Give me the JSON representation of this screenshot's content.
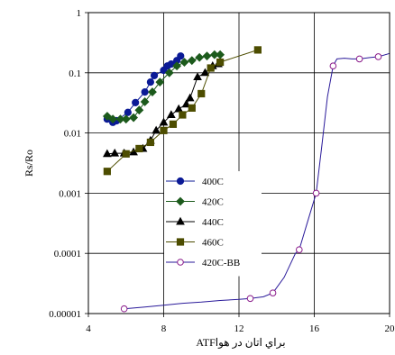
{
  "chart_data": {
    "type": "scatter",
    "title": "",
    "xlabel": "ATFبراي اتان در هوا",
    "ylabel": "Rs/Ro",
    "xlim": [
      4,
      20
    ],
    "ylim": [
      1e-05,
      1
    ],
    "yscale": "log",
    "grid": true,
    "legend_position": "center",
    "x_ticks": [
      "4",
      "8",
      "12",
      "16",
      "20"
    ],
    "y_ticks": [
      "0.00001",
      "0.0001",
      "0.001",
      "0.01",
      "0.1",
      "1"
    ],
    "series": [
      {
        "name": "400C",
        "color": "#0b1a96",
        "marker": "circle-filled",
        "points": [
          [
            5.0,
            0.017
          ],
          [
            5.3,
            0.015
          ],
          [
            5.5,
            0.016
          ],
          [
            6.1,
            0.022
          ],
          [
            6.5,
            0.032
          ],
          [
            7.0,
            0.048
          ],
          [
            7.3,
            0.07
          ],
          [
            7.5,
            0.09
          ],
          [
            8.0,
            0.11
          ],
          [
            8.2,
            0.13
          ],
          [
            8.4,
            0.14
          ],
          [
            8.7,
            0.16
          ],
          [
            8.9,
            0.19
          ]
        ]
      },
      {
        "name": "420C",
        "color": "#1c5a1c",
        "marker": "diamond-filled",
        "points": [
          [
            5.0,
            0.019
          ],
          [
            5.3,
            0.017
          ],
          [
            5.7,
            0.017
          ],
          [
            6.0,
            0.017
          ],
          [
            6.4,
            0.018
          ],
          [
            6.7,
            0.024
          ],
          [
            7.0,
            0.033
          ],
          [
            7.4,
            0.048
          ],
          [
            7.8,
            0.07
          ],
          [
            8.3,
            0.1
          ],
          [
            8.7,
            0.13
          ],
          [
            9.1,
            0.15
          ],
          [
            9.5,
            0.16
          ],
          [
            9.9,
            0.18
          ],
          [
            10.3,
            0.19
          ],
          [
            10.7,
            0.2
          ],
          [
            11.0,
            0.2
          ]
        ]
      },
      {
        "name": "440C",
        "color": "#000000",
        "marker": "triangle-filled",
        "points": [
          [
            5.0,
            0.0045
          ],
          [
            5.4,
            0.0046
          ],
          [
            5.9,
            0.0046
          ],
          [
            6.4,
            0.0048
          ],
          [
            6.9,
            0.0055
          ],
          [
            7.3,
            0.0075
          ],
          [
            7.6,
            0.011
          ],
          [
            8.0,
            0.015
          ],
          [
            8.4,
            0.02
          ],
          [
            8.8,
            0.025
          ],
          [
            9.2,
            0.03
          ],
          [
            9.4,
            0.038
          ],
          [
            9.8,
            0.085
          ],
          [
            10.2,
            0.1
          ],
          [
            10.6,
            0.13
          ],
          [
            10.9,
            0.14
          ]
        ]
      },
      {
        "name": "460C",
        "color": "#4d4d00",
        "marker": "square-filled",
        "points": [
          [
            5.0,
            0.0023
          ],
          [
            6.0,
            0.0045
          ],
          [
            6.7,
            0.0055
          ],
          [
            7.3,
            0.007
          ],
          [
            8.0,
            0.011
          ],
          [
            8.5,
            0.014
          ],
          [
            9.0,
            0.02
          ],
          [
            9.5,
            0.026
          ],
          [
            10.0,
            0.045
          ],
          [
            10.5,
            0.12
          ],
          [
            11.0,
            0.15
          ],
          [
            13.0,
            0.24
          ]
        ]
      },
      {
        "name": "420C-BB",
        "color": "#2a1a9a",
        "marker": "circle-open",
        "marker_color": "#8a1a8a",
        "points": [
          [
            5.9,
            1.2e-05
          ],
          [
            7.0,
            1.28e-05
          ],
          [
            8.0,
            1.38e-05
          ],
          [
            9.0,
            1.48e-05
          ],
          [
            10.0,
            1.55e-05
          ],
          [
            11.0,
            1.65e-05
          ],
          [
            12.0,
            1.72e-05
          ],
          [
            12.6,
            1.78e-05
          ],
          [
            13.3,
            1.9e-05
          ],
          [
            13.8,
            2.2e-05
          ],
          [
            14.4,
            4e-05
          ],
          [
            15.0,
            0.0001
          ],
          [
            15.2,
            0.000115
          ],
          [
            15.6,
            0.0003
          ],
          [
            16.1,
            0.001
          ],
          [
            16.4,
            0.006
          ],
          [
            16.7,
            0.04
          ],
          [
            17.0,
            0.13
          ],
          [
            17.2,
            0.17
          ],
          [
            17.6,
            0.175
          ],
          [
            18.0,
            0.17
          ],
          [
            18.4,
            0.17
          ],
          [
            19.0,
            0.18
          ],
          [
            19.4,
            0.185
          ],
          [
            20.0,
            0.21
          ]
        ],
        "marked_points": [
          [
            5.9,
            1.2e-05
          ],
          [
            12.6,
            1.78e-05
          ],
          [
            13.8,
            2.2e-05
          ],
          [
            15.2,
            0.000115
          ],
          [
            16.1,
            0.001
          ],
          [
            17.0,
            0.13
          ],
          [
            18.4,
            0.17
          ],
          [
            19.4,
            0.185
          ]
        ]
      }
    ]
  }
}
